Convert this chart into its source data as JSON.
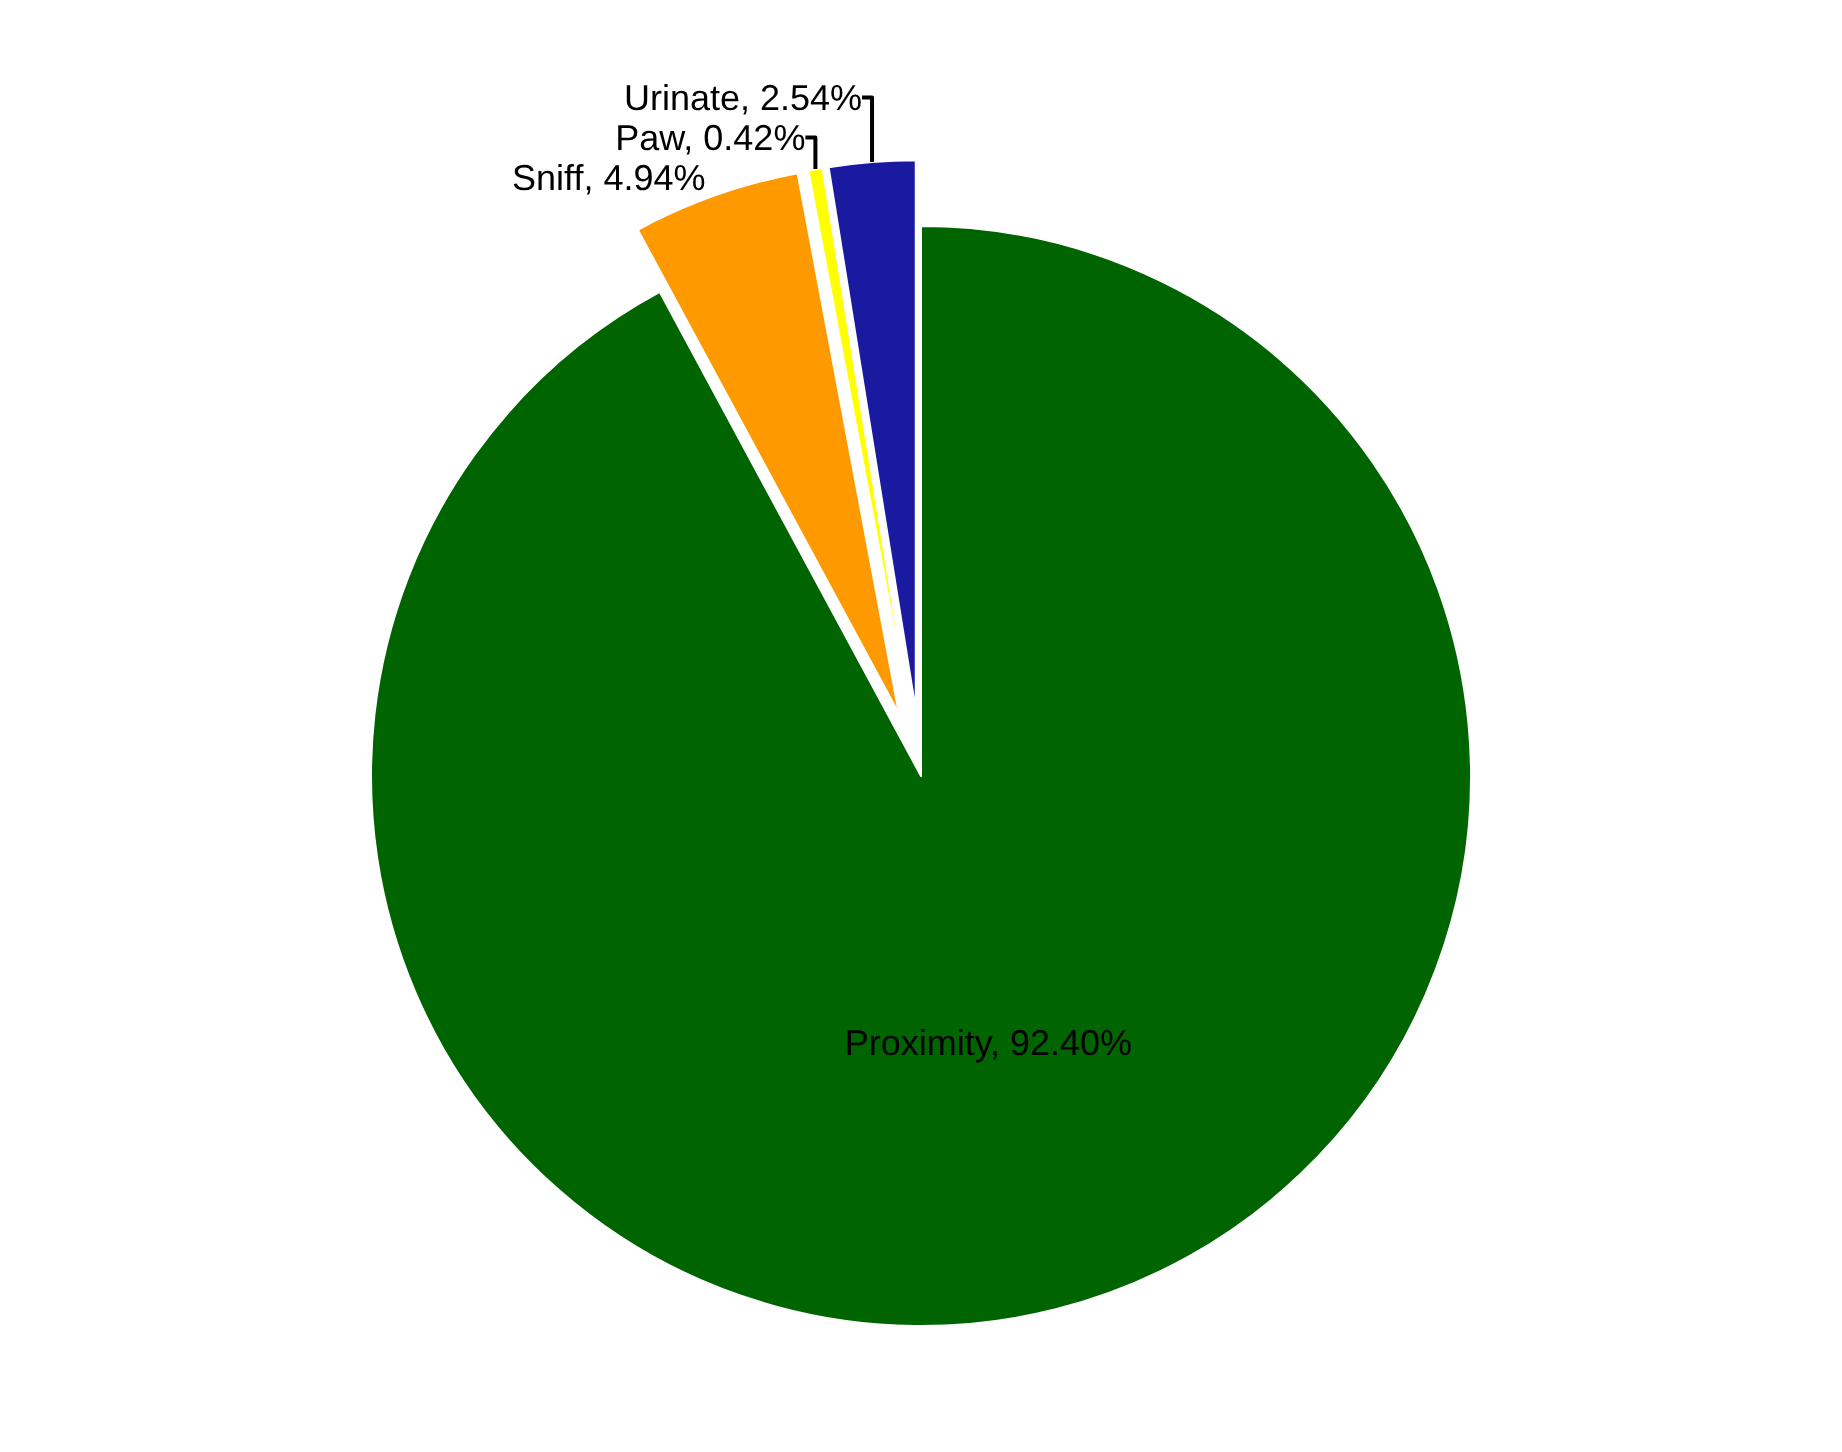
{
  "chart_data": {
    "type": "pie",
    "categories": [
      "Proximity",
      "Sniff",
      "Paw",
      "Urinate"
    ],
    "values": [
      92.4,
      4.94,
      0.42,
      2.54
    ],
    "value_labels": [
      "92.40%",
      "4.94%",
      "0.42%",
      "2.54%"
    ],
    "colors": [
      "#006400",
      "#ff9900",
      "#ffff00",
      "#1a1aa0"
    ],
    "legend": false
  }
}
